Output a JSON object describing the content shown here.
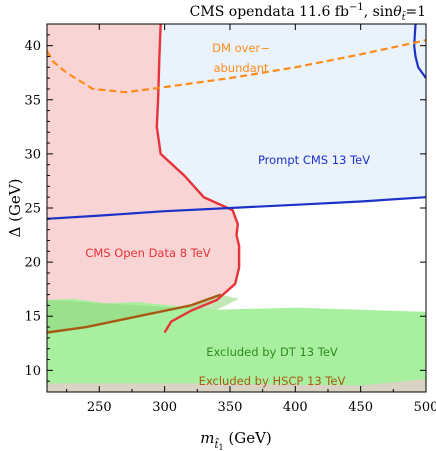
{
  "chart_data": {
    "type": "area",
    "title": "CMS opendata 11.6 fb",
    "title_sup": "−1",
    "title_sin": ", sin",
    "title_theta": "θ",
    "title_theta_sub": "t̃",
    "title_eq": "=1",
    "xlabel_main": "m",
    "xlabel_sub": "t̃",
    "xlabel_sub2": "1",
    "xlabel_unit": " (GeV)",
    "ylabel": "Δ (GeV)",
    "xlim": [
      210,
      500
    ],
    "ylim": [
      8,
      42
    ],
    "x_ticks": [
      "250",
      "300",
      "350",
      "400",
      "450",
      "500"
    ],
    "y_ticks": [
      "10",
      "15",
      "20",
      "25",
      "30",
      "35",
      "40"
    ],
    "x_tick_values": [
      250,
      300,
      350,
      400,
      450,
      500
    ],
    "y_tick_values": [
      10,
      15,
      20,
      25,
      30,
      35,
      40
    ],
    "regions": [
      {
        "name": "CMS Open Data 8 TeV",
        "fill": "#f9d4d4",
        "stroke": "#e8333a",
        "boundary": [
          [
            297,
            42
          ],
          [
            296,
            39
          ],
          [
            295,
            35
          ],
          [
            294,
            32.5
          ],
          [
            297,
            30
          ],
          [
            315,
            28
          ],
          [
            330,
            26
          ],
          [
            352,
            24.8
          ],
          [
            356,
            23.5
          ],
          [
            355,
            22.5
          ],
          [
            357,
            21.5
          ],
          [
            357,
            19.5
          ],
          [
            354,
            18
          ],
          [
            340,
            16.5
          ],
          [
            320,
            15.5
          ],
          [
            305,
            14.5
          ],
          [
            300,
            13.5
          ]
        ]
      },
      {
        "name": "Prompt CMS 13 TeV",
        "fill": "#eaf3fb",
        "stroke": "#1c32c8",
        "boundary": [
          [
            210,
            24
          ],
          [
            250,
            24.3
          ],
          [
            300,
            24.7
          ],
          [
            350,
            25
          ],
          [
            400,
            25.3
          ],
          [
            450,
            25.6
          ],
          [
            500,
            26
          ]
        ]
      },
      {
        "name": "Prompt CMS 13 TeV (upper)",
        "stroke": "#1c32c8",
        "boundary": [
          [
            492,
            42
          ],
          [
            491,
            40
          ],
          [
            492,
            39
          ],
          [
            494,
            38
          ],
          [
            500,
            37
          ]
        ]
      },
      {
        "name": "Excluded by DT 13 TeV",
        "fill": "#a8f0a0",
        "boundary": [
          [
            210,
            16.5
          ],
          [
            230,
            16.6
          ],
          [
            255,
            16.2
          ],
          [
            280,
            16.3
          ],
          [
            340,
            15.6
          ],
          [
            400,
            15.8
          ],
          [
            450,
            15.6
          ],
          [
            500,
            15.4
          ]
        ]
      },
      {
        "name": "Excluded by HSCP 13 TeV",
        "fill": "#c7c7b5",
        "stroke": "#a85a12",
        "boundary": [
          [
            210,
            13.5
          ],
          [
            240,
            14
          ],
          [
            280,
            15
          ],
          [
            320,
            16
          ],
          [
            343,
            17
          ]
        ]
      },
      {
        "name": "DM over-abundant",
        "stroke": "#ff8c1a",
        "dashed": true,
        "boundary": [
          [
            210,
            39.5
          ],
          [
            215,
            38.5
          ],
          [
            225,
            37.5
          ],
          [
            245,
            36
          ],
          [
            270,
            35.7
          ],
          [
            290,
            36
          ],
          [
            350,
            37
          ],
          [
            400,
            38
          ],
          [
            450,
            39.2
          ],
          [
            500,
            40.5
          ]
        ]
      }
    ],
    "labels": {
      "dm_line1": "DM over−",
      "dm_line2": "abundant",
      "prompt": "Prompt CMS 13 TeV",
      "open": "CMS Open Data 8 TeV",
      "dt": "Excluded by DT 13 TeV",
      "hscp": "Excluded by HSCP 13 TeV"
    },
    "colors": {
      "red_region": "#f9d4d4",
      "blue_region": "#eaf3fb",
      "green_region": "#a8f0a0",
      "hscp_region": "#d9d3c4",
      "axis": "#000000"
    }
  }
}
